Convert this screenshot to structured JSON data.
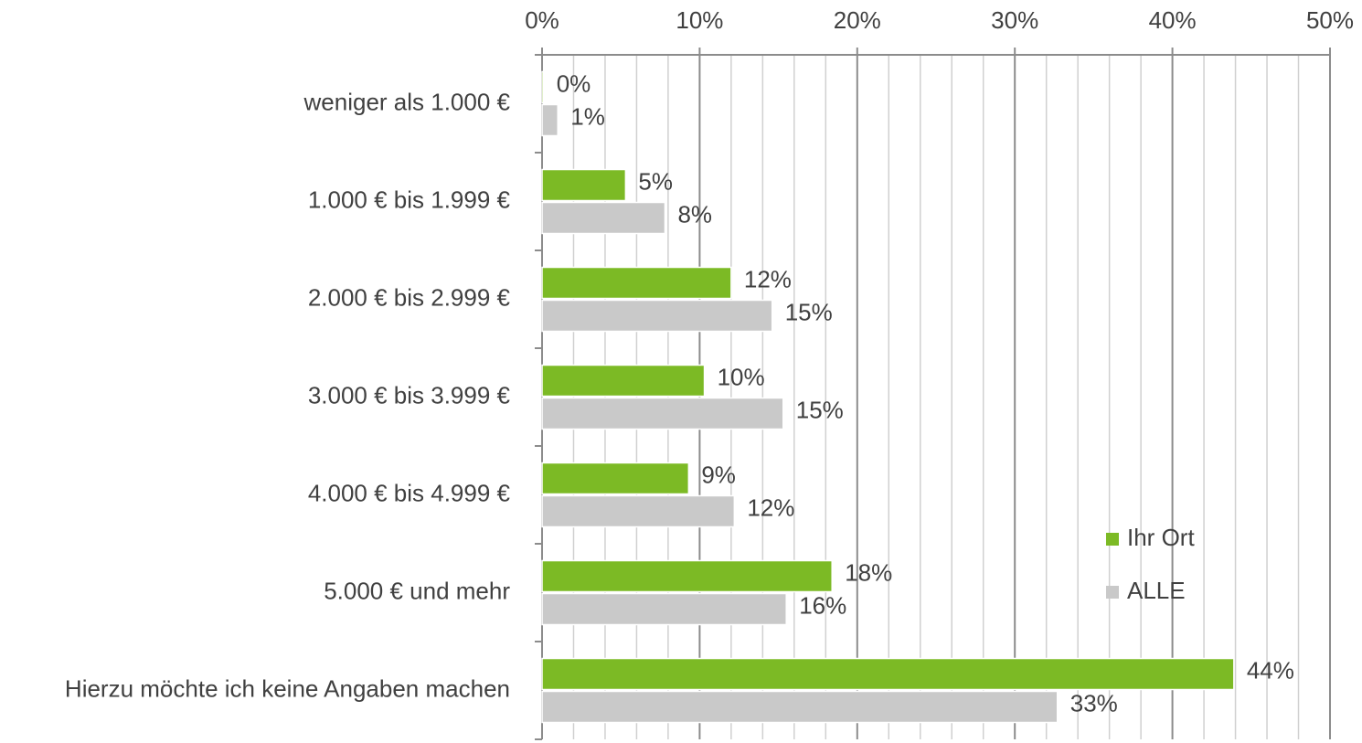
{
  "chart_data": {
    "type": "hbar",
    "categories": [
      "weniger als 1.000 €",
      "1.000 € bis 1.999 €",
      "2.000 € bis 2.999 €",
      "3.000 € bis 3.999 €",
      "4.000 € bis 4.999 €",
      "5.000 € und mehr",
      "Hierzu möchte ich keine Angaben machen"
    ],
    "series": [
      {
        "name": "Ihr Ort",
        "color": "#7cba25",
        "values": [
          0.1,
          5.3,
          12.0,
          10.3,
          9.3,
          18.4,
          43.9
        ],
        "value_labels": [
          "0%",
          "5%",
          "12%",
          "10%",
          "9%",
          "18%",
          "44%"
        ]
      },
      {
        "name": "ALLE",
        "color": "#c9c9c9",
        "values": [
          1.0,
          7.8,
          14.6,
          15.3,
          12.2,
          15.5,
          32.7
        ],
        "value_labels": [
          "1%",
          "8%",
          "15%",
          "15%",
          "12%",
          "16%",
          "33%"
        ]
      }
    ],
    "xlim": [
      0,
      50
    ],
    "xticks": [
      {
        "value": 0,
        "label": "0%"
      },
      {
        "value": 10,
        "label": "10%"
      },
      {
        "value": 20,
        "label": "20%"
      },
      {
        "value": 30,
        "label": "30%"
      },
      {
        "value": 40,
        "label": "40%"
      },
      {
        "value": 50,
        "label": "50%"
      }
    ],
    "xminorticks": [
      2,
      4,
      6,
      8,
      12,
      14,
      16,
      18,
      22,
      24,
      26,
      28,
      32,
      34,
      36,
      38,
      42,
      44,
      46,
      48
    ],
    "grid": true,
    "legend": "lower right"
  }
}
